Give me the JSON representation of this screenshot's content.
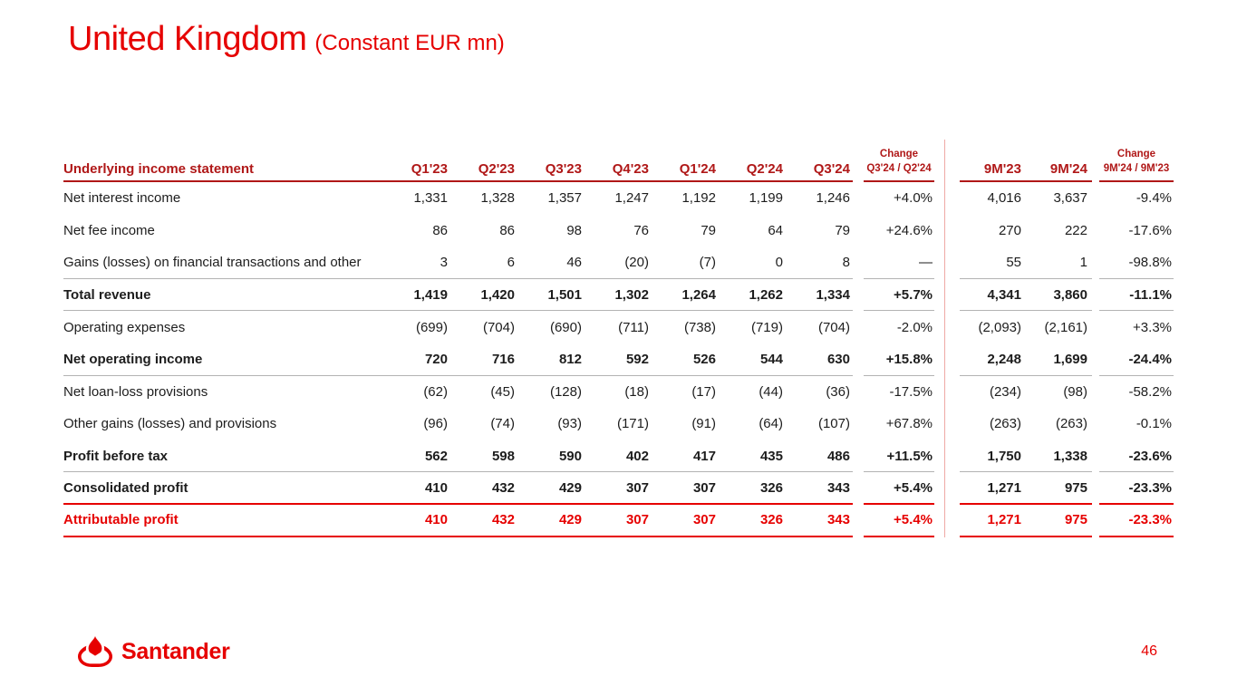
{
  "slide": {
    "title": "United Kingdom",
    "subtitle": "(Constant EUR mn)",
    "page_number": "46",
    "footer_logo_text": "Santander"
  },
  "colors": {
    "brand_red": "#E60000",
    "dark_red": "#B01818",
    "body_text": "#1D1D1D",
    "gray_line": "#B3B3B3",
    "divider_pink": "#EFA9A5"
  },
  "table": {
    "label_header": "Underlying income statement",
    "quarters": [
      "Q1'23",
      "Q2'23",
      "Q3'23",
      "Q4'23",
      "Q1'24",
      "Q2'24",
      "Q3'24"
    ],
    "qoq_change_header": [
      "Change",
      "Q3'24 / Q2'24"
    ],
    "periods": [
      "9M'23",
      "9M'24"
    ],
    "yoy_change_header": [
      "Change",
      "9M'24 / 9M'23"
    ],
    "rows": [
      {
        "label": "Net interest income",
        "emphasis": "normal",
        "separator": "none",
        "values": [
          "1,331",
          "1,328",
          "1,357",
          "1,247",
          "1,192",
          "1,199",
          "1,246"
        ],
        "qoq_change": "+4.0%",
        "periods": [
          "4,016",
          "3,637"
        ],
        "yoy_change": "-9.4%"
      },
      {
        "label": "Net fee income",
        "emphasis": "normal",
        "separator": "none",
        "values": [
          "86",
          "86",
          "98",
          "76",
          "79",
          "64",
          "79"
        ],
        "qoq_change": "+24.6%",
        "periods": [
          "270",
          "222"
        ],
        "yoy_change": "-17.6%"
      },
      {
        "label": "Gains (losses) on financial transactions and other",
        "emphasis": "normal",
        "separator": "gray",
        "values": [
          "3",
          "6",
          "46",
          "(20)",
          "(7)",
          "0",
          "8"
        ],
        "qoq_change": "—",
        "periods": [
          "55",
          "1"
        ],
        "yoy_change": "-98.8%"
      },
      {
        "label": "Total revenue",
        "emphasis": "bold",
        "separator": "gray",
        "values": [
          "1,419",
          "1,420",
          "1,501",
          "1,302",
          "1,264",
          "1,262",
          "1,334"
        ],
        "qoq_change": "+5.7%",
        "periods": [
          "4,341",
          "3,860"
        ],
        "yoy_change": "-11.1%"
      },
      {
        "label": "Operating expenses",
        "emphasis": "normal",
        "separator": "none",
        "values": [
          "(699)",
          "(704)",
          "(690)",
          "(711)",
          "(738)",
          "(719)",
          "(704)"
        ],
        "qoq_change": "-2.0%",
        "periods": [
          "(2,093)",
          "(2,161)"
        ],
        "yoy_change": "+3.3%"
      },
      {
        "label": "Net operating income",
        "emphasis": "bold",
        "separator": "gray",
        "values": [
          "720",
          "716",
          "812",
          "592",
          "526",
          "544",
          "630"
        ],
        "qoq_change": "+15.8%",
        "periods": [
          "2,248",
          "1,699"
        ],
        "yoy_change": "-24.4%"
      },
      {
        "label": "Net loan-loss provisions",
        "emphasis": "normal",
        "separator": "none",
        "values": [
          "(62)",
          "(45)",
          "(128)",
          "(18)",
          "(17)",
          "(44)",
          "(36)"
        ],
        "qoq_change": "-17.5%",
        "periods": [
          "(234)",
          "(98)"
        ],
        "yoy_change": "-58.2%"
      },
      {
        "label": "Other gains (losses) and provisions",
        "emphasis": "normal",
        "separator": "none",
        "values": [
          "(96)",
          "(74)",
          "(93)",
          "(171)",
          "(91)",
          "(64)",
          "(107)"
        ],
        "qoq_change": "+67.8%",
        "periods": [
          "(263)",
          "(263)"
        ],
        "yoy_change": "-0.1%"
      },
      {
        "label": "Profit before tax",
        "emphasis": "bold",
        "separator": "gray",
        "values": [
          "562",
          "598",
          "590",
          "402",
          "417",
          "435",
          "486"
        ],
        "qoq_change": "+11.5%",
        "periods": [
          "1,750",
          "1,338"
        ],
        "yoy_change": "-23.6%"
      },
      {
        "label": "Consolidated profit",
        "emphasis": "bold",
        "separator": "red",
        "values": [
          "410",
          "432",
          "429",
          "307",
          "307",
          "326",
          "343"
        ],
        "qoq_change": "+5.4%",
        "periods": [
          "1,271",
          "975"
        ],
        "yoy_change": "-23.3%"
      },
      {
        "label": "Attributable profit",
        "emphasis": "bold-red",
        "separator": "red",
        "values": [
          "410",
          "432",
          "429",
          "307",
          "307",
          "326",
          "343"
        ],
        "qoq_change": "+5.4%",
        "periods": [
          "1,271",
          "975"
        ],
        "yoy_change": "-23.3%"
      }
    ]
  }
}
